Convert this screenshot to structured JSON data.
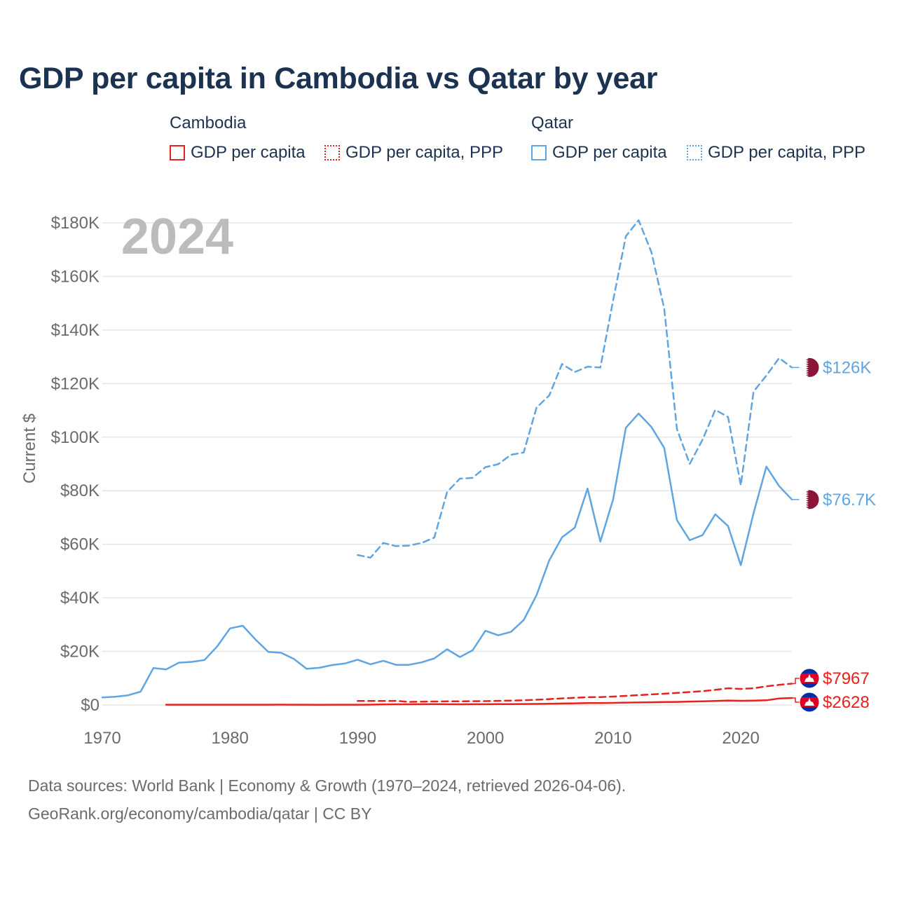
{
  "title": "GDP per capita in Cambodia vs Qatar by year",
  "legend": {
    "groups": [
      {
        "name": "Cambodia",
        "items": [
          {
            "label": "GDP per capita",
            "style": "solid",
            "color": "#e8201e"
          },
          {
            "label": "GDP per capita, PPP",
            "style": "dotted",
            "color": "#e8201e"
          }
        ]
      },
      {
        "name": "Qatar",
        "items": [
          {
            "label": "GDP per capita",
            "style": "solid",
            "color": "#5ea5e3"
          },
          {
            "label": "GDP per capita, PPP",
            "style": "dotted",
            "color": "#5ea5e3"
          }
        ]
      }
    ]
  },
  "year_overlay": "2024",
  "footer": {
    "line1": "Data sources: World Bank | Economy & Growth (1970–2024, retrieved 2026-04-06).",
    "line2": "GeoRank.org/economy/cambodia/qatar | CC BY"
  },
  "chart_data": {
    "type": "line",
    "ylabel": "Current $",
    "xlabel": "",
    "xlim": [
      1970,
      2024
    ],
    "ylim": [
      0,
      180000
    ],
    "x_ticks": [
      1970,
      1980,
      1990,
      2000,
      2010,
      2020
    ],
    "y_ticks": [
      0,
      20000,
      40000,
      60000,
      80000,
      100000,
      120000,
      140000,
      160000,
      180000
    ],
    "y_tick_labels": [
      "$0",
      "$20K",
      "$40K",
      "$60K",
      "$80K",
      "$100K",
      "$120K",
      "$140K",
      "$160K",
      "$180K"
    ],
    "grid": true,
    "series": [
      {
        "name": "Qatar GDP per capita, PPP",
        "country": "Qatar",
        "color": "#5ea5e3",
        "dash": "dashed",
        "end_label": "$126K",
        "x": [
          1990,
          1991,
          1992,
          1993,
          1994,
          1995,
          1996,
          1997,
          1998,
          1999,
          2000,
          2001,
          2002,
          2003,
          2004,
          2005,
          2006,
          2007,
          2008,
          2009,
          2010,
          2011,
          2012,
          2013,
          2014,
          2015,
          2016,
          2017,
          2018,
          2019,
          2020,
          2021,
          2022,
          2023,
          2024
        ],
        "values": [
          56000,
          55000,
          60500,
          59300,
          59500,
          60500,
          62500,
          79500,
          84500,
          84800,
          88800,
          89900,
          93400,
          94300,
          111000,
          115600,
          127300,
          124300,
          126300,
          126000,
          151000,
          175000,
          181000,
          169000,
          148000,
          103000,
          90000,
          99000,
          110200,
          107500,
          82000,
          117000,
          123000,
          129500,
          126000
        ]
      },
      {
        "name": "Qatar GDP per capita",
        "country": "Qatar",
        "color": "#5ea5e3",
        "dash": "solid",
        "end_label": "$76.7K",
        "x": [
          1970,
          1971,
          1972,
          1973,
          1974,
          1975,
          1976,
          1977,
          1978,
          1979,
          1980,
          1981,
          1982,
          1983,
          1984,
          1985,
          1986,
          1987,
          1988,
          1989,
          1990,
          1991,
          1992,
          1993,
          1994,
          1995,
          1996,
          1997,
          1998,
          1999,
          2000,
          2001,
          2002,
          2003,
          2004,
          2005,
          2006,
          2007,
          2008,
          2009,
          2010,
          2011,
          2012,
          2013,
          2014,
          2015,
          2016,
          2017,
          2018,
          2019,
          2020,
          2021,
          2022,
          2023,
          2024
        ],
        "values": [
          2800,
          3100,
          3600,
          5000,
          13800,
          13300,
          15800,
          16100,
          16800,
          21900,
          28600,
          29600,
          24400,
          19800,
          19500,
          17200,
          13500,
          13900,
          14900,
          15500,
          16900,
          15200,
          16500,
          15000,
          15000,
          15900,
          17400,
          20800,
          17900,
          20400,
          27700,
          26000,
          27300,
          31700,
          41000,
          54000,
          62600,
          66200,
          80800,
          61000,
          76700,
          103500,
          108800,
          103800,
          96000,
          69000,
          61500,
          63400,
          71200,
          66800,
          52200,
          71600,
          89000,
          81700,
          76700
        ]
      },
      {
        "name": "Cambodia GDP per capita, PPP",
        "country": "Cambodia",
        "color": "#e8201e",
        "dash": "dashed",
        "end_label": "$7967",
        "x": [
          1990,
          1991,
          1992,
          1993,
          1994,
          1995,
          1996,
          1997,
          1998,
          1999,
          2000,
          2001,
          2002,
          2003,
          2004,
          2005,
          2006,
          2007,
          2008,
          2009,
          2010,
          2011,
          2012,
          2013,
          2014,
          2015,
          2016,
          2017,
          2018,
          2019,
          2020,
          2021,
          2022,
          2023,
          2024
        ],
        "values": [
          1500,
          1500,
          1500,
          1550,
          1150,
          1250,
          1300,
          1350,
          1350,
          1400,
          1450,
          1550,
          1650,
          1750,
          1950,
          2200,
          2450,
          2700,
          2900,
          2950,
          3150,
          3400,
          3700,
          3950,
          4200,
          4500,
          4850,
          5150,
          5650,
          6250,
          6000,
          6250,
          6950,
          7500,
          7967
        ]
      },
      {
        "name": "Cambodia GDP per capita",
        "country": "Cambodia",
        "color": "#e8201e",
        "dash": "solid",
        "end_label": "$2628",
        "x": [
          1975,
          1976,
          1977,
          1978,
          1979,
          1980,
          1981,
          1982,
          1983,
          1984,
          1985,
          1986,
          1987,
          1988,
          1989,
          1990,
          1991,
          1992,
          1993,
          1994,
          1995,
          1996,
          1997,
          1998,
          1999,
          2000,
          2001,
          2002,
          2003,
          2004,
          2005,
          2006,
          2007,
          2008,
          2009,
          2010,
          2011,
          2012,
          2013,
          2014,
          2015,
          2016,
          2017,
          2018,
          2019,
          2020,
          2021,
          2022,
          2023,
          2024
        ],
        "values": [
          100,
          100,
          100,
          100,
          100,
          100,
          100,
          100,
          100,
          120,
          110,
          110,
          90,
          100,
          110,
          110,
          130,
          230,
          250,
          250,
          300,
          320,
          300,
          260,
          280,
          300,
          320,
          340,
          360,
          400,
          470,
          540,
          630,
          740,
          730,
          790,
          880,
          950,
          1010,
          1090,
          1160,
          1270,
          1380,
          1500,
          1670,
          1580,
          1620,
          1760,
          2430,
          2628
        ]
      }
    ]
  }
}
